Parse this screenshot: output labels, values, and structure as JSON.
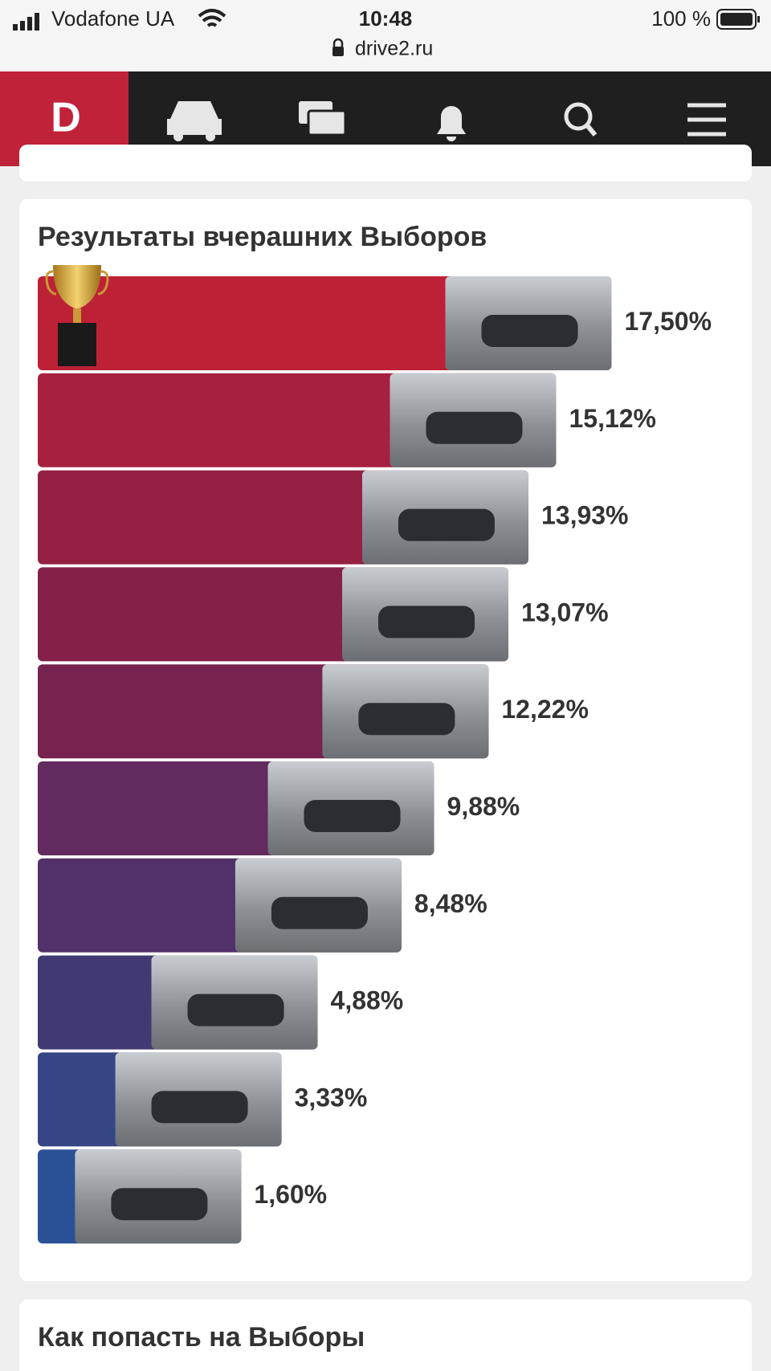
{
  "status_bar": {
    "carrier": "Vodafone UA",
    "time": "10:48",
    "battery": "100 %"
  },
  "address_bar": {
    "url": "drive2.ru"
  },
  "nav": {
    "logo": "D"
  },
  "results_card": {
    "title": "Результаты вчерашних Выборов",
    "chart_data": {
      "type": "bar",
      "values": [
        17.5,
        15.12,
        13.93,
        13.07,
        12.22,
        9.88,
        8.48,
        4.88,
        3.33,
        1.6
      ],
      "value_labels": [
        "17,50%",
        "15,12%",
        "13,93%",
        "13,07%",
        "12,22%",
        "9,88%",
        "8,48%",
        "4,88%",
        "3,33%",
        "1,60%"
      ],
      "colors": [
        "#bd2136",
        "#a8203f",
        "#952043",
        "#852148",
        "#76234f",
        "#622a5e",
        "#52306a",
        "#413a72",
        "#354585",
        "#2a5196"
      ]
    }
  },
  "next_card": {
    "title": "Как попасть на Выборы"
  }
}
